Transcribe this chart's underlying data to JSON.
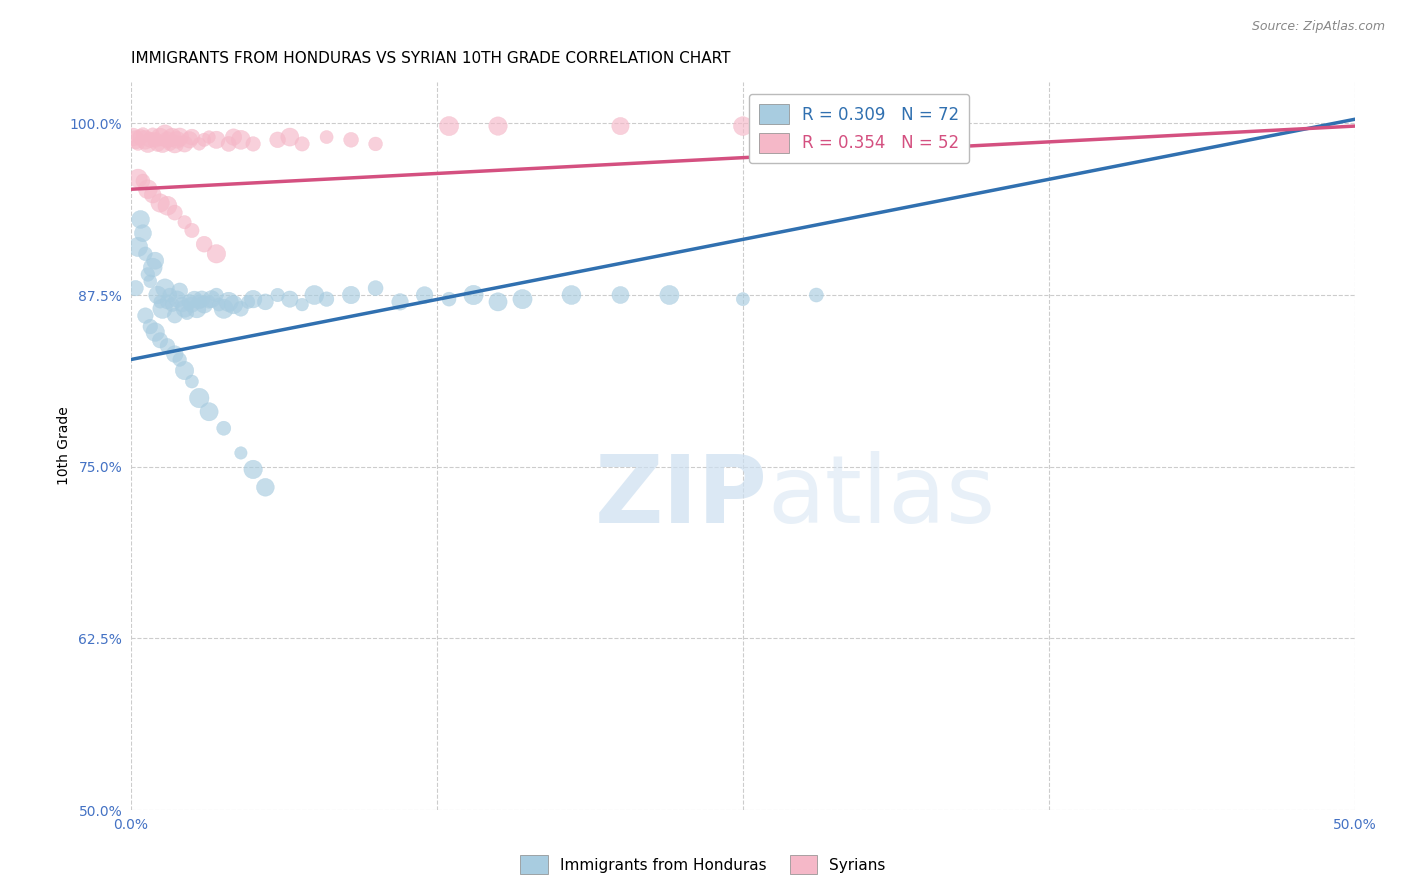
{
  "title": "IMMIGRANTS FROM HONDURAS VS SYRIAN 10TH GRADE CORRELATION CHART",
  "source": "Source: ZipAtlas.com",
  "ylabel": "10th Grade",
  "xlabel": "",
  "xlim": [
    0.0,
    0.5
  ],
  "ylim": [
    0.5,
    1.03
  ],
  "ytick_positions": [
    0.5,
    0.625,
    0.75,
    0.875,
    1.0
  ],
  "ytick_labels": [
    "50.0%",
    "62.5%",
    "75.0%",
    "87.5%",
    "100.0%"
  ],
  "xtick_positions": [
    0.0,
    0.125,
    0.25,
    0.375,
    0.5
  ],
  "xtick_labels": [
    "0.0%",
    "",
    "",
    "",
    "50.0%"
  ],
  "watermark_zip": "ZIP",
  "watermark_atlas": "atlas",
  "legend_blue_label": "R = 0.309   N = 72",
  "legend_pink_label": "R = 0.354   N = 52",
  "blue_color": "#a8cce0",
  "pink_color": "#f5b8c8",
  "blue_line_color": "#3070b0",
  "pink_line_color": "#d45080",
  "blue_trendline_x": [
    0.0,
    0.5
  ],
  "blue_trendline_y": [
    0.828,
    1.003
  ],
  "pink_trendline_x": [
    0.0,
    0.5
  ],
  "pink_trendline_y": [
    0.952,
    0.998
  ],
  "honduras_x": [
    0.002,
    0.003,
    0.004,
    0.005,
    0.006,
    0.007,
    0.008,
    0.009,
    0.01,
    0.011,
    0.012,
    0.013,
    0.014,
    0.015,
    0.016,
    0.017,
    0.018,
    0.019,
    0.02,
    0.021,
    0.022,
    0.023,
    0.024,
    0.025,
    0.026,
    0.027,
    0.028,
    0.029,
    0.03,
    0.032,
    0.033,
    0.035,
    0.036,
    0.038,
    0.04,
    0.042,
    0.045,
    0.048,
    0.05,
    0.055,
    0.06,
    0.065,
    0.07,
    0.075,
    0.08,
    0.09,
    0.1,
    0.11,
    0.12,
    0.13,
    0.14,
    0.15,
    0.16,
    0.18,
    0.2,
    0.22,
    0.25,
    0.28,
    0.3,
    0.33,
    0.006,
    0.008,
    0.01,
    0.012,
    0.015,
    0.018,
    0.02,
    0.022,
    0.025,
    0.028,
    0.032,
    0.038,
    0.045,
    0.05,
    0.055
  ],
  "honduras_y": [
    0.88,
    0.91,
    0.93,
    0.92,
    0.905,
    0.89,
    0.885,
    0.895,
    0.9,
    0.875,
    0.87,
    0.865,
    0.88,
    0.87,
    0.875,
    0.868,
    0.86,
    0.872,
    0.878,
    0.868,
    0.865,
    0.862,
    0.87,
    0.868,
    0.872,
    0.865,
    0.87,
    0.872,
    0.868,
    0.87,
    0.872,
    0.875,
    0.868,
    0.865,
    0.87,
    0.868,
    0.865,
    0.87,
    0.872,
    0.87,
    0.875,
    0.872,
    0.868,
    0.875,
    0.872,
    0.875,
    0.88,
    0.87,
    0.875,
    0.872,
    0.875,
    0.87,
    0.872,
    0.875,
    0.875,
    0.875,
    0.872,
    0.875,
    0.998,
    0.998,
    0.86,
    0.852,
    0.848,
    0.842,
    0.838,
    0.832,
    0.828,
    0.82,
    0.812,
    0.8,
    0.79,
    0.778,
    0.76,
    0.748,
    0.735
  ],
  "syrian_x": [
    0.001,
    0.002,
    0.003,
    0.004,
    0.005,
    0.006,
    0.007,
    0.008,
    0.009,
    0.01,
    0.011,
    0.012,
    0.013,
    0.014,
    0.015,
    0.016,
    0.017,
    0.018,
    0.019,
    0.02,
    0.022,
    0.024,
    0.025,
    0.028,
    0.03,
    0.032,
    0.035,
    0.04,
    0.042,
    0.045,
    0.05,
    0.06,
    0.065,
    0.07,
    0.08,
    0.09,
    0.1,
    0.13,
    0.15,
    0.2,
    0.25,
    0.003,
    0.005,
    0.007,
    0.009,
    0.012,
    0.015,
    0.018,
    0.022,
    0.025,
    0.03,
    0.035
  ],
  "syrian_y": [
    0.99,
    0.988,
    0.985,
    0.99,
    0.992,
    0.988,
    0.985,
    0.988,
    0.992,
    0.988,
    0.985,
    0.99,
    0.985,
    0.992,
    0.988,
    0.985,
    0.99,
    0.985,
    0.988,
    0.99,
    0.985,
    0.988,
    0.99,
    0.985,
    0.988,
    0.99,
    0.988,
    0.985,
    0.99,
    0.988,
    0.985,
    0.988,
    0.99,
    0.985,
    0.99,
    0.988,
    0.985,
    0.998,
    0.998,
    0.998,
    0.998,
    0.96,
    0.958,
    0.952,
    0.948,
    0.942,
    0.94,
    0.935,
    0.928,
    0.922,
    0.912,
    0.905
  ],
  "background_color": "#ffffff",
  "grid_color": "#cccccc",
  "title_fontsize": 11,
  "axis_label_fontsize": 10,
  "tick_fontsize": 10,
  "legend_fontsize": 12,
  "tick_color": "#4472c4"
}
